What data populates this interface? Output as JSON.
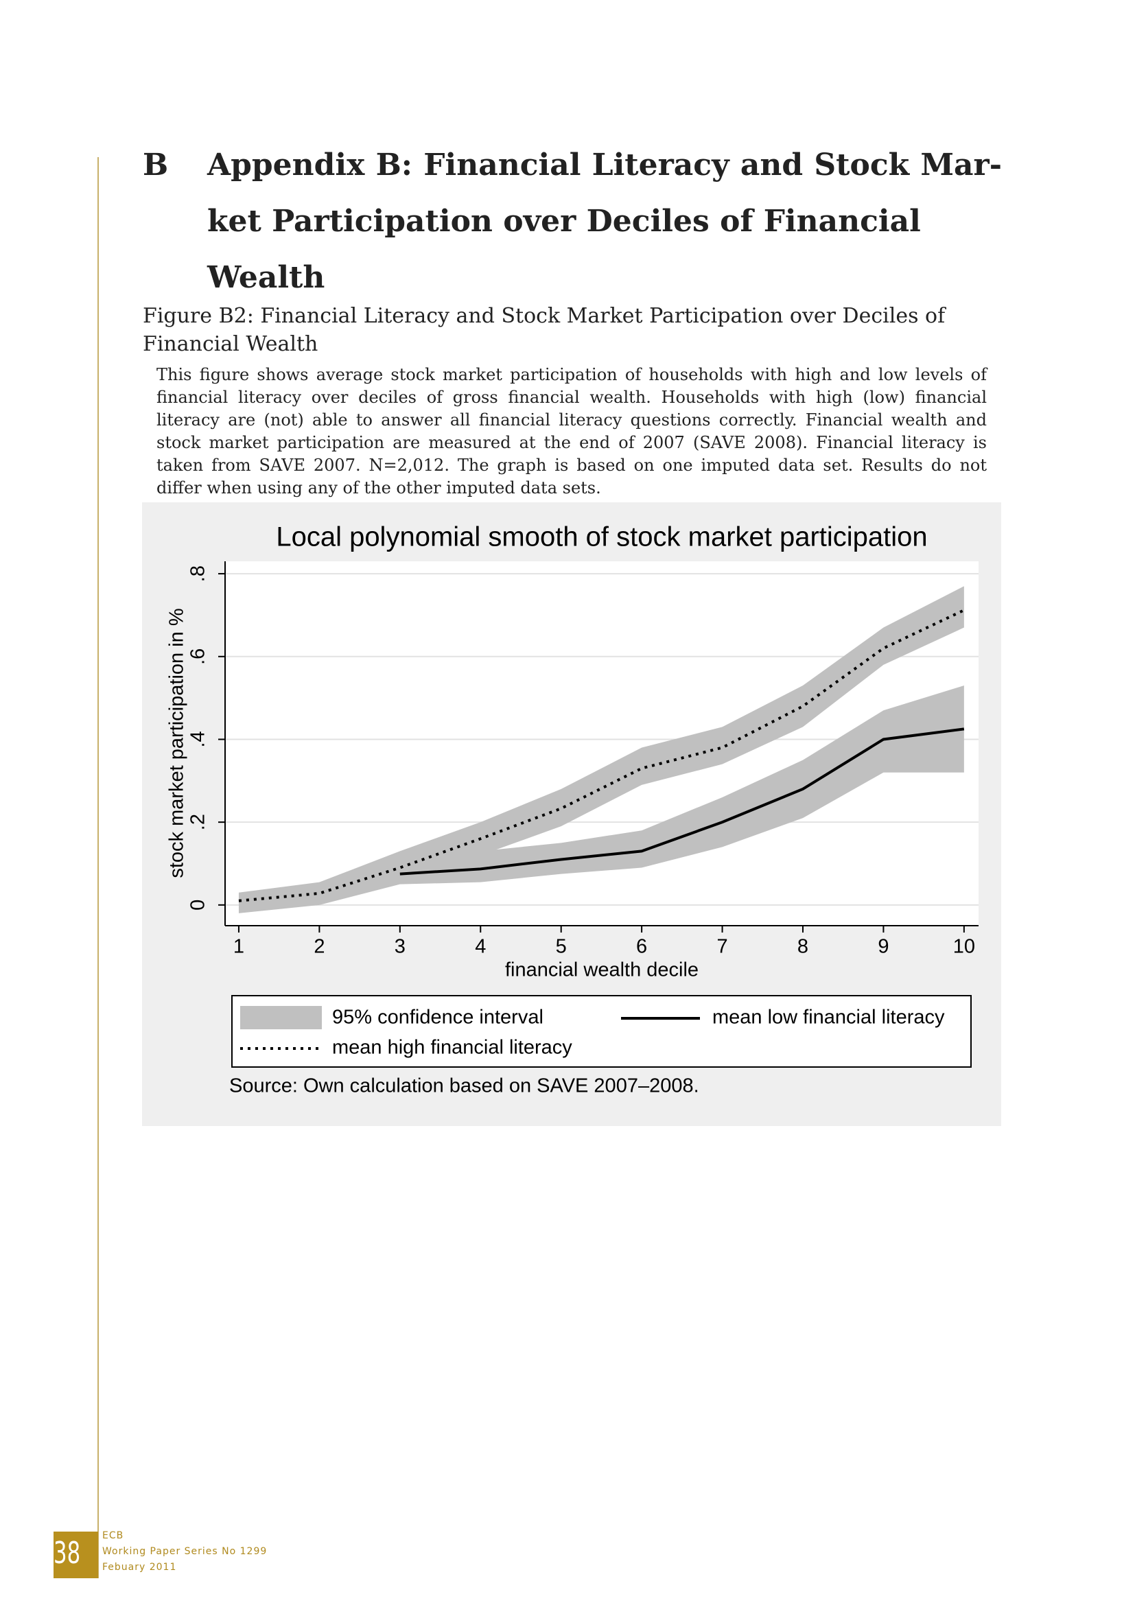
{
  "header": {
    "section": "B",
    "title_lines": [
      "Appendix B: Financial Literacy and Stock Mar-",
      "ket Participation over Deciles of Financial Wealth"
    ]
  },
  "figure": {
    "caption": "Figure B2: Financial Literacy and Stock Market Participation over Deciles of Financial Wealth",
    "description": "This figure shows average stock market participation of households with high and low levels of financial literacy over deciles of gross financial wealth. Households with high (low) financial literacy are (not) able to answer all financial literacy questions correctly. Financial wealth and stock market participation are measured at the end of 2007 (SAVE 2008). Financial literacy is taken from SAVE 2007. N=2,012. The graph is based on one imputed data set. Results do not differ when using any of the other imputed data sets."
  },
  "chart_data": {
    "type": "line",
    "title": "Local polynomial smooth of stock market participation",
    "x_label": "financial wealth decile",
    "y_label": "stock market participation in %",
    "source": "Source: Own calculation based on SAVE 2007–2008.",
    "x": [
      1,
      2,
      3,
      4,
      5,
      6,
      7,
      8,
      9,
      10
    ],
    "xlim": [
      0.83,
      10.18
    ],
    "xticks": [
      1,
      2,
      3,
      4,
      5,
      6,
      7,
      8,
      9,
      10
    ],
    "ylim": [
      -0.05,
      0.83
    ],
    "yticks": [
      0,
      {
        "value": 0.2,
        "label": ".2"
      },
      {
        "value": 0.4,
        "label": ".4"
      },
      {
        "value": 0.6,
        "label": ".6"
      },
      {
        "value": 0.8,
        "label": ".8"
      }
    ],
    "grid": true,
    "confidence_interval": {
      "name": "95% confidence interval",
      "color": "#c0c0c0"
    },
    "series": [
      {
        "name": "mean low financial literacy",
        "color": "#000000",
        "style": "solid",
        "values": [
          null,
          null,
          0.075,
          0.087,
          0.11,
          0.13,
          0.2,
          0.28,
          0.4,
          0.425
        ],
        "ci_lower": [
          null,
          null,
          0.05,
          0.055,
          0.075,
          0.09,
          0.14,
          0.21,
          0.32,
          0.32
        ],
        "ci_upper": [
          null,
          null,
          0.09,
          0.13,
          0.15,
          0.18,
          0.26,
          0.35,
          0.47,
          0.53
        ]
      },
      {
        "name": "mean high financial literacy",
        "color": "#000000",
        "style": "dotted",
        "values": [
          0.01,
          0.028,
          0.09,
          0.16,
          0.233,
          0.33,
          0.38,
          0.48,
          0.62,
          0.712
        ],
        "ci_lower": [
          -0.02,
          0.0,
          0.05,
          0.12,
          0.19,
          0.29,
          0.34,
          0.43,
          0.58,
          0.67
        ],
        "ci_upper": [
          0.03,
          0.055,
          0.13,
          0.2,
          0.28,
          0.38,
          0.43,
          0.53,
          0.67,
          0.77
        ]
      }
    ]
  },
  "footer": {
    "page_number": "38",
    "lines": [
      "ECB",
      "Working Paper Series No 1299",
      "Febuary 2011"
    ]
  }
}
